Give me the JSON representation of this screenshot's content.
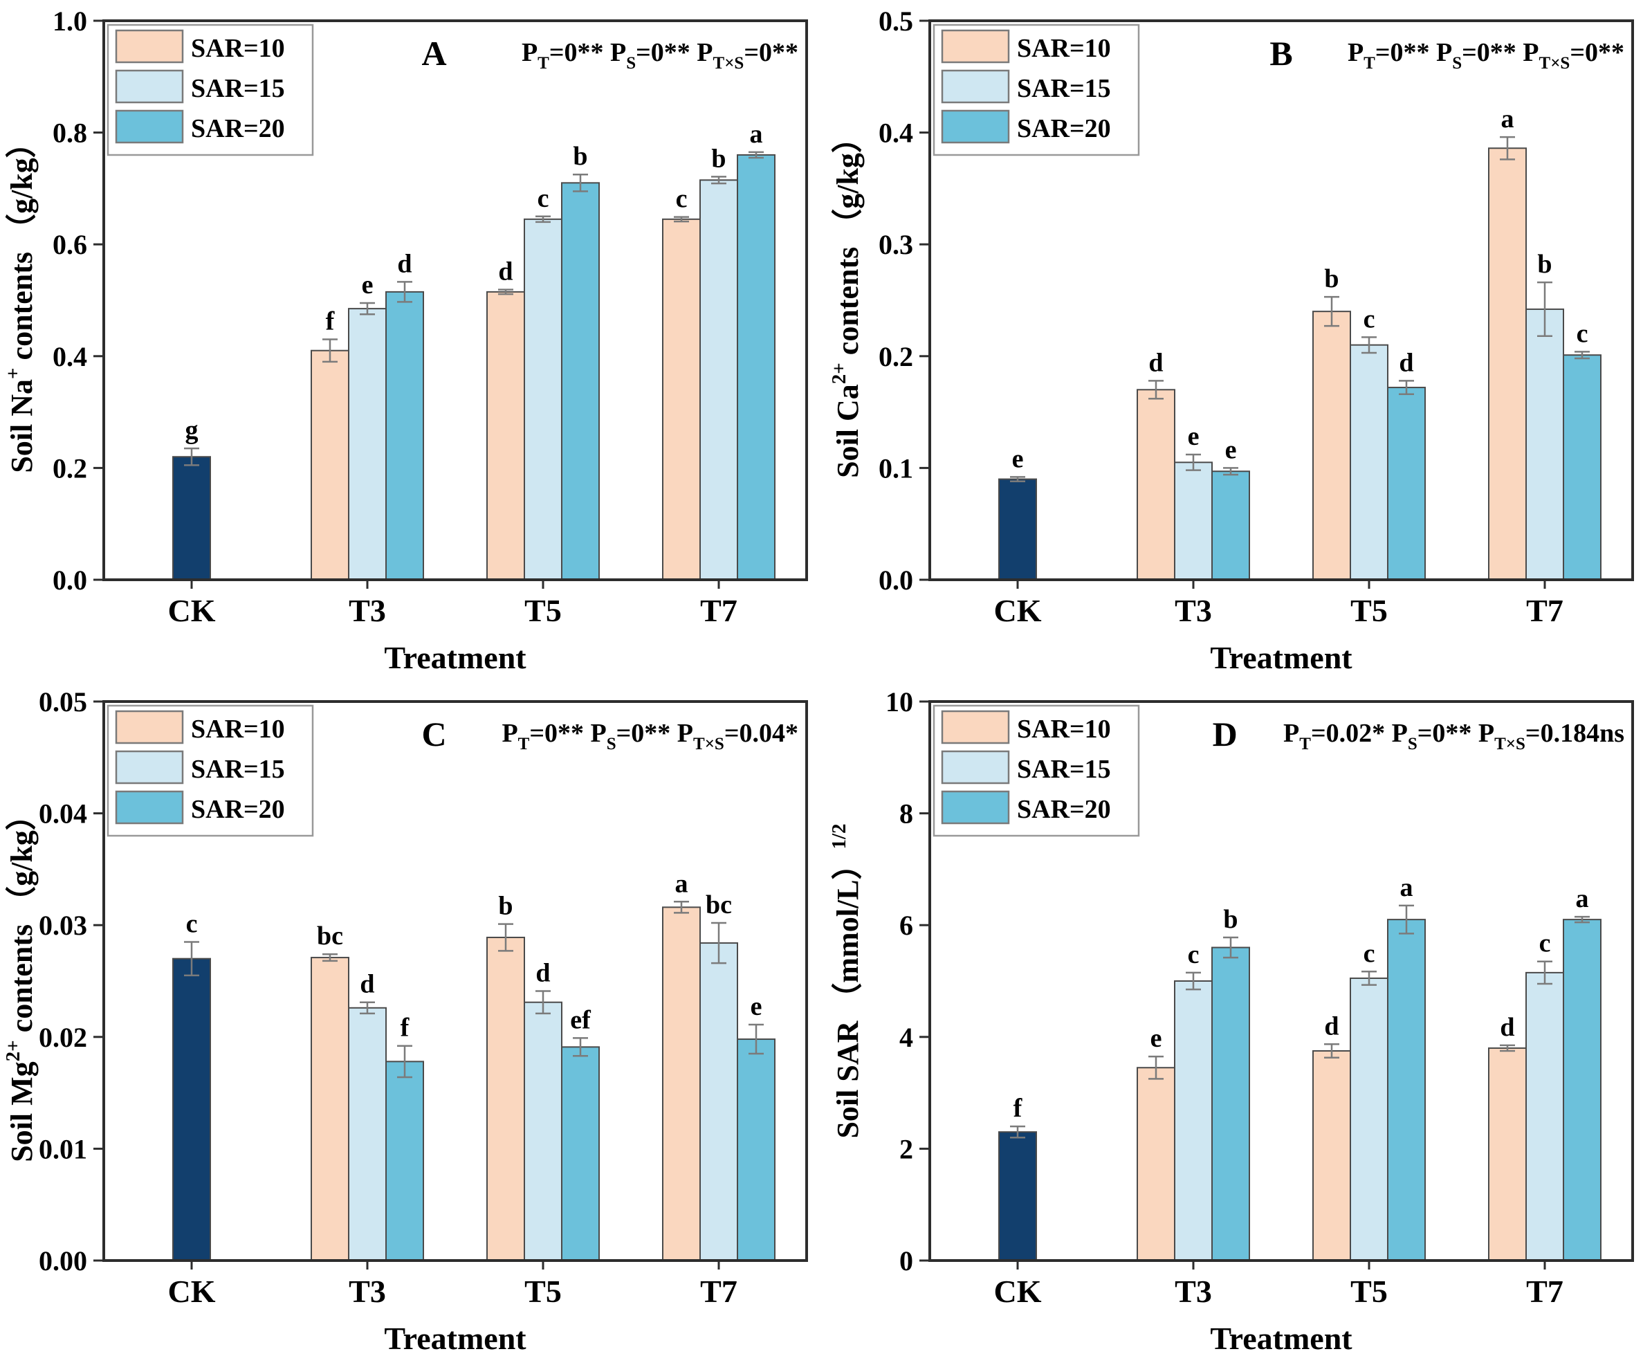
{
  "figure_title": "",
  "legend": {
    "items": [
      {
        "label": "SAR=10",
        "color": "#FAD7BF"
      },
      {
        "label": "SAR=15",
        "color": "#CFE7F2"
      },
      {
        "label": "SAR=20",
        "color": "#6CC1DB"
      }
    ]
  },
  "colors": {
    "ck_bar": "#123F6D",
    "sar10_bar": "#FAD7BF",
    "sar15_bar": "#CFE7F2",
    "sar20_bar": "#6CC1DB",
    "bar_stroke": "#4a4a4a",
    "axis": "#2d2d2d",
    "error_bar": "#7b7b7b",
    "legend_border": "#999999",
    "text": "#000000"
  },
  "chart_data": [
    {
      "type": "bar",
      "panel_label": "A",
      "letter_frac": 0.47,
      "ylabel_segments": [
        {
          "t": "Soil Na"
        },
        {
          "sup": "+"
        },
        {
          "t": " contents （g/kg）"
        }
      ],
      "xlabel": "Treatment",
      "ylim": [
        0,
        1.0
      ],
      "yticks": [
        "0.0",
        "0.2",
        "0.4",
        "0.6",
        "0.8",
        "1.0"
      ],
      "p_segments": [
        {
          "t": "P"
        },
        {
          "sub": "T"
        },
        {
          "t": "=0** P"
        },
        {
          "sub": "S"
        },
        {
          "t": "=0** P"
        },
        {
          "sub": "T×S"
        },
        {
          "t": "=0**"
        }
      ],
      "categories": [
        "CK",
        "T3",
        "T5",
        "T7"
      ],
      "groups": [
        {
          "category": "CK",
          "bars": [
            {
              "series": "CK",
              "value": 0.22,
              "err": 0.015,
              "letter": "g"
            }
          ]
        },
        {
          "category": "T3",
          "bars": [
            {
              "series": "SAR=10",
              "value": 0.41,
              "err": 0.02,
              "letter": "f"
            },
            {
              "series": "SAR=15",
              "value": 0.485,
              "err": 0.01,
              "letter": "e"
            },
            {
              "series": "SAR=20",
              "value": 0.515,
              "err": 0.018,
              "letter": "d"
            }
          ]
        },
        {
          "category": "T5",
          "bars": [
            {
              "series": "SAR=10",
              "value": 0.515,
              "err": 0.004,
              "letter": "d"
            },
            {
              "series": "SAR=15",
              "value": 0.645,
              "err": 0.005,
              "letter": "c"
            },
            {
              "series": "SAR=20",
              "value": 0.71,
              "err": 0.015,
              "letter": "b"
            }
          ]
        },
        {
          "category": "T7",
          "bars": [
            {
              "series": "SAR=10",
              "value": 0.645,
              "err": 0.004,
              "letter": "c"
            },
            {
              "series": "SAR=15",
              "value": 0.715,
              "err": 0.006,
              "letter": "b"
            },
            {
              "series": "SAR=20",
              "value": 0.76,
              "err": 0.005,
              "letter": "a"
            }
          ]
        }
      ]
    },
    {
      "type": "bar",
      "panel_label": "B",
      "letter_frac": 0.5,
      "ylabel_segments": [
        {
          "t": "Soil Ca"
        },
        {
          "sup": "2+"
        },
        {
          "t": " contents （g/kg）"
        }
      ],
      "xlabel": "Treatment",
      "ylim": [
        0,
        0.5
      ],
      "yticks": [
        "0.0",
        "0.1",
        "0.2",
        "0.3",
        "0.4",
        "0.5"
      ],
      "p_segments": [
        {
          "t": "P"
        },
        {
          "sub": "T"
        },
        {
          "t": "=0** P"
        },
        {
          "sub": "S"
        },
        {
          "t": "=0** P"
        },
        {
          "sub": "T×S"
        },
        {
          "t": "=0**"
        }
      ],
      "categories": [
        "CK",
        "T3",
        "T5",
        "T7"
      ],
      "groups": [
        {
          "category": "CK",
          "bars": [
            {
              "series": "CK",
              "value": 0.09,
              "err": 0.002,
              "letter": "e"
            }
          ]
        },
        {
          "category": "T3",
          "bars": [
            {
              "series": "SAR=10",
              "value": 0.17,
              "err": 0.008,
              "letter": "d"
            },
            {
              "series": "SAR=15",
              "value": 0.105,
              "err": 0.007,
              "letter": "e"
            },
            {
              "series": "SAR=20",
              "value": 0.097,
              "err": 0.003,
              "letter": "e"
            }
          ]
        },
        {
          "category": "T5",
          "bars": [
            {
              "series": "SAR=10",
              "value": 0.24,
              "err": 0.013,
              "letter": "b"
            },
            {
              "series": "SAR=15",
              "value": 0.21,
              "err": 0.007,
              "letter": "c"
            },
            {
              "series": "SAR=20",
              "value": 0.172,
              "err": 0.006,
              "letter": "d"
            }
          ]
        },
        {
          "category": "T7",
          "bars": [
            {
              "series": "SAR=10",
              "value": 0.386,
              "err": 0.01,
              "letter": "a"
            },
            {
              "series": "SAR=15",
              "value": 0.242,
              "err": 0.024,
              "letter": "b"
            },
            {
              "series": "SAR=20",
              "value": 0.201,
              "err": 0.003,
              "letter": "c"
            }
          ]
        }
      ]
    },
    {
      "type": "bar",
      "panel_label": "C",
      "letter_frac": 0.47,
      "ylabel_segments": [
        {
          "t": "Soil Mg"
        },
        {
          "sup": "2+"
        },
        {
          "t": " contents （g/kg）"
        }
      ],
      "xlabel": "Treatment",
      "ylim": [
        0,
        0.05
      ],
      "yticks": [
        "0.00",
        "0.01",
        "0.02",
        "0.03",
        "0.04",
        "0.05"
      ],
      "p_segments": [
        {
          "t": "P"
        },
        {
          "sub": "T"
        },
        {
          "t": "=0** P"
        },
        {
          "sub": "S"
        },
        {
          "t": "=0** P"
        },
        {
          "sub": "T×S"
        },
        {
          "t": "=0.04*"
        }
      ],
      "categories": [
        "CK",
        "T3",
        "T5",
        "T7"
      ],
      "groups": [
        {
          "category": "CK",
          "bars": [
            {
              "series": "CK",
              "value": 0.027,
              "err": 0.0015,
              "letter": "c"
            }
          ]
        },
        {
          "category": "T3",
          "bars": [
            {
              "series": "SAR=10",
              "value": 0.0271,
              "err": 0.0003,
              "letter": "bc"
            },
            {
              "series": "SAR=15",
              "value": 0.0226,
              "err": 0.0005,
              "letter": "d"
            },
            {
              "series": "SAR=20",
              "value": 0.0178,
              "err": 0.0014,
              "letter": "f"
            }
          ]
        },
        {
          "category": "T5",
          "bars": [
            {
              "series": "SAR=10",
              "value": 0.0289,
              "err": 0.0012,
              "letter": "b"
            },
            {
              "series": "SAR=15",
              "value": 0.0231,
              "err": 0.001,
              "letter": "d"
            },
            {
              "series": "SAR=20",
              "value": 0.0191,
              "err": 0.0008,
              "letter": "ef"
            }
          ]
        },
        {
          "category": "T7",
          "bars": [
            {
              "series": "SAR=10",
              "value": 0.0316,
              "err": 0.0005,
              "letter": "a"
            },
            {
              "series": "SAR=15",
              "value": 0.0284,
              "err": 0.0018,
              "letter": "bc"
            },
            {
              "series": "SAR=20",
              "value": 0.0198,
              "err": 0.0013,
              "letter": "e"
            }
          ]
        }
      ]
    },
    {
      "type": "bar",
      "panel_label": "D",
      "letter_frac": 0.42,
      "ylabel_segments": [
        {
          "t": "Soil SAR （mmol/L）"
        },
        {
          "sup": "1/2"
        }
      ],
      "xlabel": "Treatment",
      "ylim": [
        0,
        10
      ],
      "yticks": [
        "0",
        "2",
        "4",
        "6",
        "8",
        "10"
      ],
      "p_segments": [
        {
          "t": "P"
        },
        {
          "sub": "T"
        },
        {
          "t": "=0.02* P"
        },
        {
          "sub": "S"
        },
        {
          "t": "=0** P"
        },
        {
          "sub": "T×S"
        },
        {
          "t": "=0.184ns"
        }
      ],
      "categories": [
        "CK",
        "T3",
        "T5",
        "T7"
      ],
      "groups": [
        {
          "category": "CK",
          "bars": [
            {
              "series": "CK",
              "value": 2.3,
              "err": 0.1,
              "letter": "f"
            }
          ]
        },
        {
          "category": "T3",
          "bars": [
            {
              "series": "SAR=10",
              "value": 3.45,
              "err": 0.2,
              "letter": "e"
            },
            {
              "series": "SAR=15",
              "value": 5.0,
              "err": 0.15,
              "letter": "c"
            },
            {
              "series": "SAR=20",
              "value": 5.6,
              "err": 0.18,
              "letter": "b"
            }
          ]
        },
        {
          "category": "T5",
          "bars": [
            {
              "series": "SAR=10",
              "value": 3.75,
              "err": 0.12,
              "letter": "d"
            },
            {
              "series": "SAR=15",
              "value": 5.05,
              "err": 0.12,
              "letter": "c"
            },
            {
              "series": "SAR=20",
              "value": 6.1,
              "err": 0.25,
              "letter": "a"
            }
          ]
        },
        {
          "category": "T7",
          "bars": [
            {
              "series": "SAR=10",
              "value": 3.8,
              "err": 0.05,
              "letter": "d"
            },
            {
              "series": "SAR=15",
              "value": 5.15,
              "err": 0.2,
              "letter": "c"
            },
            {
              "series": "SAR=20",
              "value": 6.1,
              "err": 0.05,
              "letter": "a"
            }
          ]
        }
      ]
    }
  ]
}
